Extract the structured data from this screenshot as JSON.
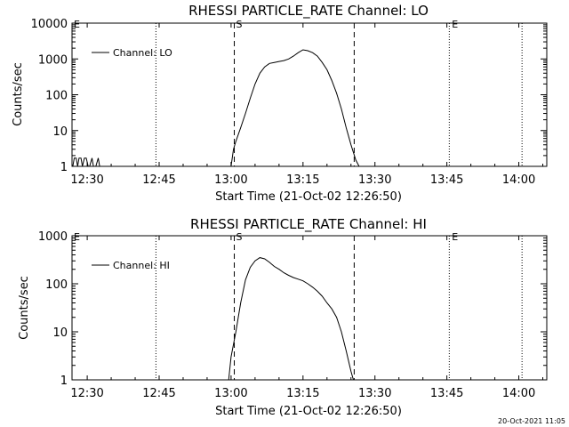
{
  "timestamp": "20-Oct-2021 11:05",
  "chart_data": [
    {
      "type": "line",
      "title": "RHESSI PARTICLE_RATE Channel: LO",
      "xlabel": "Start Time (21-Oct-02 12:26:50)",
      "ylabel": "Counts/sec",
      "yscale": "log",
      "ylim": [
        1,
        10000
      ],
      "xlim_minutes": [
        26.83,
        125.83
      ],
      "xticks": [
        {
          "label": "12:30",
          "value": 30
        },
        {
          "label": "12:45",
          "value": 45
        },
        {
          "label": "13:00",
          "value": 60
        },
        {
          "label": "13:15",
          "value": 75
        },
        {
          "label": "13:30",
          "value": 90
        },
        {
          "label": "13:45",
          "value": 105
        },
        {
          "label": "14:00",
          "value": 120
        }
      ],
      "yticks": [
        {
          "label": "1",
          "value": 1
        },
        {
          "label": "10",
          "value": 10
        },
        {
          "label": "100",
          "value": 100
        },
        {
          "label": "1000",
          "value": 1000
        },
        {
          "label": "10000",
          "value": 10000
        }
      ],
      "legend": {
        "label": "Channel: LO",
        "placement": "top-left"
      },
      "markers": [
        {
          "label": "E",
          "value": 26.83
        },
        {
          "label": "S",
          "value": 60.67
        },
        {
          "label": "E",
          "value": 105.67
        }
      ],
      "dashed_lines": [
        60.67,
        85.67
      ],
      "dotted_lines": [
        44.33,
        105.5,
        120.67
      ],
      "series": [
        {
          "name": "Channel: LO",
          "x": [
            27.0,
            27.3,
            27.7,
            28.0,
            28.3,
            28.7,
            29.0,
            29.4,
            29.8,
            30.2,
            30.5,
            31.0,
            31.3,
            31.8,
            32.3,
            32.6,
            33.0,
            60.0,
            60.5,
            61.0,
            62.0,
            63.0,
            64.0,
            65.0,
            66.0,
            67.0,
            68.0,
            69.0,
            70.0,
            71.0,
            72.0,
            73.0,
            74.0,
            75.0,
            76.0,
            77.0,
            78.0,
            79.0,
            80.0,
            81.0,
            82.0,
            83.0,
            84.0,
            85.0,
            86.0,
            86.7
          ],
          "y": [
            1,
            1.7,
            1.7,
            1,
            1.7,
            1.7,
            1,
            1.7,
            1.7,
            1,
            1,
            1.7,
            1,
            1,
            1.7,
            1,
            1,
            1,
            3,
            5,
            12,
            30,
            80,
            200,
            400,
            600,
            750,
            800,
            850,
            900,
            1000,
            1200,
            1500,
            1800,
            1700,
            1500,
            1200,
            800,
            500,
            250,
            110,
            40,
            12,
            4,
            1.5,
            1
          ]
        }
      ]
    },
    {
      "type": "line",
      "title": "RHESSI PARTICLE_RATE Channel: HI",
      "xlabel": "Start Time (21-Oct-02 12:26:50)",
      "ylabel": "Counts/sec",
      "yscale": "log",
      "ylim": [
        1,
        1000
      ],
      "xlim_minutes": [
        26.83,
        125.83
      ],
      "xticks": [
        {
          "label": "12:30",
          "value": 30
        },
        {
          "label": "12:45",
          "value": 45
        },
        {
          "label": "13:00",
          "value": 60
        },
        {
          "label": "13:15",
          "value": 75
        },
        {
          "label": "13:30",
          "value": 90
        },
        {
          "label": "13:45",
          "value": 105
        },
        {
          "label": "14:00",
          "value": 120
        }
      ],
      "yticks": [
        {
          "label": "1",
          "value": 1
        },
        {
          "label": "10",
          "value": 10
        },
        {
          "label": "100",
          "value": 100
        },
        {
          "label": "1000",
          "value": 1000
        }
      ],
      "legend": {
        "label": "Channel: HI",
        "placement": "top-left"
      },
      "markers": [
        {
          "label": "E",
          "value": 26.83
        },
        {
          "label": "S",
          "value": 60.67
        },
        {
          "label": "E",
          "value": 105.67
        }
      ],
      "dashed_lines": [
        60.67,
        85.67
      ],
      "dotted_lines": [
        44.33,
        105.5,
        120.67
      ],
      "series": [
        {
          "name": "Channel: HI",
          "x": [
            59.5,
            60.0,
            61.0,
            62.0,
            63.0,
            64.0,
            65.0,
            66.0,
            67.0,
            68.0,
            69.0,
            70.0,
            71.0,
            72.0,
            73.0,
            74.0,
            75.0,
            76.0,
            77.0,
            78.0,
            79.0,
            80.0,
            81.0,
            82.0,
            83.0,
            84.0,
            85.0,
            85.5
          ],
          "y": [
            1,
            3,
            10,
            40,
            120,
            220,
            300,
            350,
            330,
            280,
            230,
            200,
            170,
            150,
            135,
            125,
            115,
            100,
            85,
            70,
            55,
            40,
            30,
            20,
            10,
            4,
            1.5,
            1
          ]
        }
      ]
    }
  ]
}
